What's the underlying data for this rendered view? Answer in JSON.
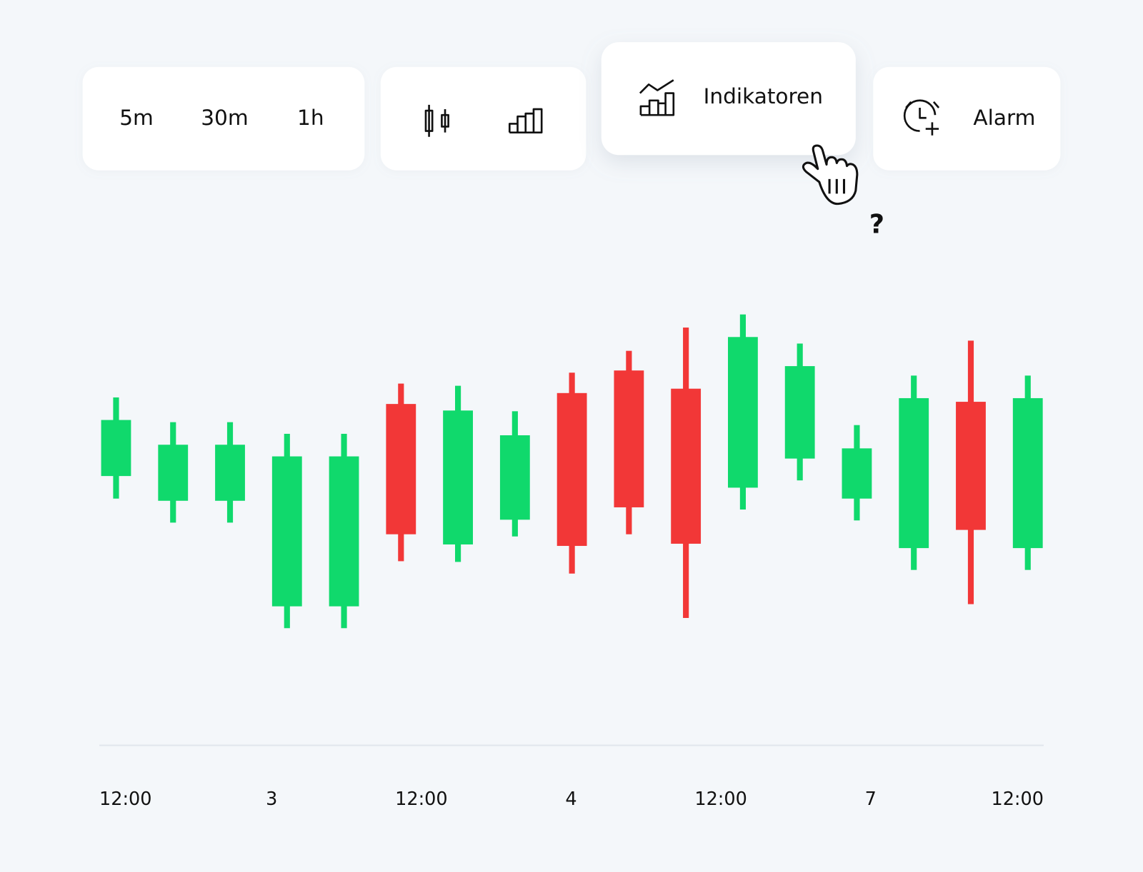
{
  "toolbar": {
    "timeframes": [
      "5m",
      "30m",
      "1h"
    ],
    "indicators": "Indikatoren",
    "alarm": "Alarm"
  },
  "cursor_hint": "?",
  "chart_data": {
    "type": "candlestick",
    "x_labels": [
      "12:00",
      "3",
      "12:00",
      "4",
      "12:00",
      "7",
      "12:00"
    ],
    "open": [
      34.6,
      31.2,
      31.2,
      16.7,
      16.7,
      44.5,
      25.2,
      28.6,
      46.0,
      49.1,
      46.6,
      33.0,
      37.0,
      31.5,
      24.7,
      44.8,
      24.7
    ],
    "high": [
      45.4,
      42.0,
      42.0,
      40.4,
      40.4,
      47.3,
      47.0,
      43.5,
      48.8,
      51.8,
      55.0,
      56.8,
      52.8,
      41.6,
      48.4,
      53.2,
      48.4
    ],
    "low": [
      31.5,
      28.2,
      28.2,
      13.7,
      13.7,
      22.9,
      22.8,
      26.3,
      21.2,
      26.6,
      15.1,
      30.0,
      34.0,
      28.5,
      21.7,
      17.0,
      21.7
    ],
    "close": [
      42.3,
      38.9,
      38.9,
      37.3,
      37.3,
      26.6,
      43.6,
      40.2,
      25.0,
      30.3,
      25.3,
      53.7,
      49.7,
      38.4,
      45.3,
      27.2,
      45.3
    ],
    "ylim": [
      0,
      70
    ],
    "up_color": "#10d96c",
    "down_color": "#f23737"
  }
}
